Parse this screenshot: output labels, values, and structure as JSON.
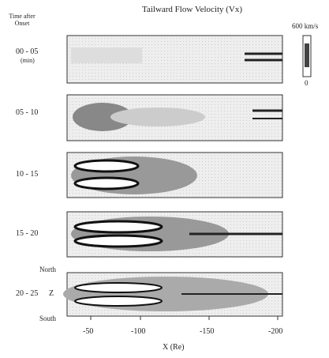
{
  "title": "Tailward Flow Velocity (Vx)",
  "row_header": "Time after Onset",
  "panels": [
    {
      "label": "00 - 05",
      "unit": "(min)"
    },
    {
      "label": "05 - 10"
    },
    {
      "label": "10 - 15"
    },
    {
      "label": "15 - 20"
    },
    {
      "label": "20 - 25"
    }
  ],
  "z_axis": {
    "top": "North",
    "label": "Z",
    "bottom": "South"
  },
  "x_axis": {
    "label": "X (Re)",
    "ticks": [
      "-50",
      "-100",
      "-150",
      "-200"
    ]
  },
  "colorbar": {
    "max": "600 km/s",
    "min": "0"
  }
}
